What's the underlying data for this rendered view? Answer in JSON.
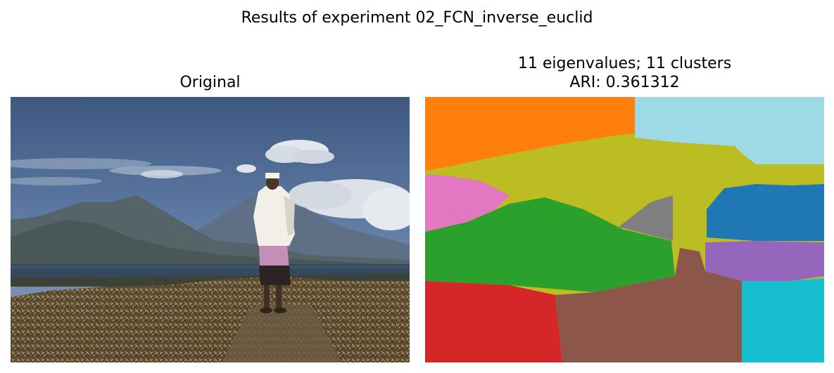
{
  "figure": {
    "suptitle": "Results of experiment 02_FCN_inverse_euclid"
  },
  "left_panel": {
    "title": "Original",
    "image": "landscape photo: man in white shirt and sarong standing on a dry brush hillside looking toward mountains, a lake and a partly cloudy sky"
  },
  "right_panel": {
    "title_line1": "11 eigenvalues; 11 clusters",
    "title_line2": "ARI: 0.361312",
    "image": "segmentation map of the same photo colored by 11 cluster labels",
    "cluster_colors": [
      "#ff7f0e",
      "#9edae5",
      "#bcbd22",
      "#e377c2",
      "#7f7f7f",
      "#1f77b4",
      "#2ca02c",
      "#9467bd",
      "#d62728",
      "#8c564b",
      "#17becf"
    ]
  }
}
